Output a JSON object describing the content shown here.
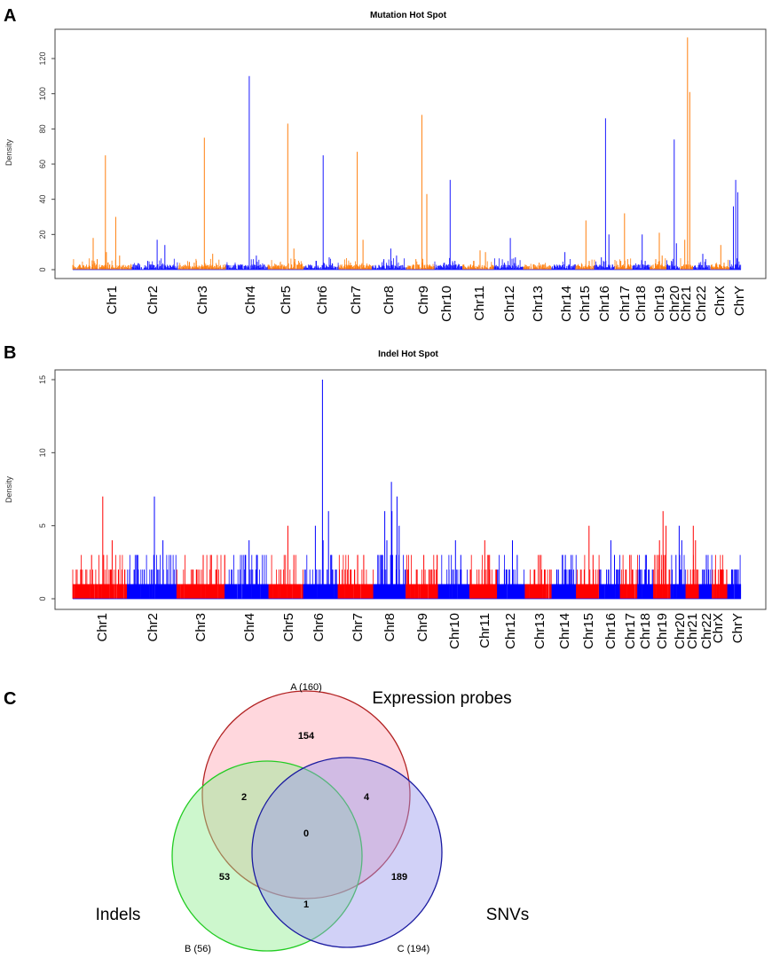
{
  "panels": {
    "a": {
      "letter": "A"
    },
    "b": {
      "letter": "B"
    },
    "c": {
      "letter": "C"
    }
  },
  "colors": {
    "mutation_odd": "#ff7f0e",
    "mutation_even": "#1a1aff",
    "indel_odd": "#ff0000",
    "indel_even": "#0000ff",
    "venn_a_fill": "#ffb6c1",
    "venn_a_stroke": "#b22222",
    "venn_b_fill": "#90ee90",
    "venn_b_stroke": "#22cc22",
    "venn_c_fill": "#9999ee",
    "venn_c_stroke": "#1a1aa0"
  },
  "chart_data": [
    {
      "type": "bar",
      "title": "Mutation Hot Spot",
      "ylabel": "Density",
      "ylim": [
        0,
        130
      ],
      "yticks": [
        0,
        20,
        40,
        60,
        80,
        100,
        120
      ],
      "grid": false,
      "categories": [
        "Chr1",
        "Chr2",
        "Chr3",
        "Chr4",
        "Chr5",
        "Chr6",
        "Chr7",
        "Chr8",
        "Chr9",
        "Chr10",
        "Chr11",
        "Chr12",
        "Chr13",
        "Chr14",
        "Chr15",
        "Chr16",
        "Chr17",
        "Chr18",
        "Chr19",
        "Chr20",
        "Chr21",
        "Chr22",
        "ChrX",
        "ChrY"
      ],
      "peaks": [
        {
          "chr": "Chr1",
          "values": [
            65,
            30,
            18,
            10,
            8,
            6
          ]
        },
        {
          "chr": "Chr2",
          "values": [
            17,
            14,
            5,
            3
          ]
        },
        {
          "chr": "Chr3",
          "values": [
            75,
            9,
            4
          ]
        },
        {
          "chr": "Chr4",
          "values": [
            110,
            8,
            3
          ]
        },
        {
          "chr": "Chr5",
          "values": [
            83,
            12,
            4
          ]
        },
        {
          "chr": "Chr6",
          "values": [
            65,
            7,
            5,
            4
          ]
        },
        {
          "chr": "Chr7",
          "values": [
            67,
            17,
            4
          ]
        },
        {
          "chr": "Chr8",
          "values": [
            12,
            8,
            6,
            5
          ]
        },
        {
          "chr": "Chr9",
          "values": [
            88,
            43,
            6,
            4
          ]
        },
        {
          "chr": "Chr10",
          "values": [
            51,
            5,
            4
          ]
        },
        {
          "chr": "Chr11",
          "values": [
            11,
            10,
            5
          ]
        },
        {
          "chr": "Chr12",
          "values": [
            18,
            7,
            4
          ]
        },
        {
          "chr": "Chr13",
          "values": [
            4,
            3,
            3
          ]
        },
        {
          "chr": "Chr14",
          "values": [
            10,
            3,
            2
          ]
        },
        {
          "chr": "Chr15",
          "values": [
            28,
            5,
            3
          ]
        },
        {
          "chr": "Chr16",
          "values": [
            86,
            20,
            7,
            5
          ]
        },
        {
          "chr": "Chr17",
          "values": [
            32,
            6,
            5
          ]
        },
        {
          "chr": "Chr18",
          "values": [
            20,
            5,
            3
          ]
        },
        {
          "chr": "Chr19",
          "values": [
            21,
            8,
            6,
            5
          ]
        },
        {
          "chr": "Chr20",
          "values": [
            74,
            15,
            5
          ]
        },
        {
          "chr": "Chr21",
          "values": [
            132,
            101,
            17,
            5
          ]
        },
        {
          "chr": "Chr22",
          "values": [
            9,
            6,
            4
          ]
        },
        {
          "chr": "ChrX",
          "values": [
            14,
            4,
            3
          ]
        },
        {
          "chr": "ChrY",
          "values": [
            51,
            44,
            36
          ]
        }
      ]
    },
    {
      "type": "bar",
      "title": "Indel Hot Spot",
      "ylabel": "Density",
      "ylim": [
        0,
        15
      ],
      "yticks": [
        0,
        5,
        10,
        15
      ],
      "grid": false,
      "categories": [
        "Chr1",
        "Chr2",
        "Chr3",
        "Chr4",
        "Chr5",
        "Chr6",
        "Chr7",
        "Chr8",
        "Chr9",
        "Chr10",
        "Chr11",
        "Chr12",
        "Chr13",
        "Chr14",
        "Chr15",
        "Chr16",
        "Chr17",
        "Chr18",
        "Chr19",
        "Chr20",
        "Chr21",
        "Chr22",
        "ChrX",
        "ChrY"
      ],
      "peaks": [
        {
          "chr": "Chr1",
          "values": [
            7,
            4,
            3,
            3,
            2
          ]
        },
        {
          "chr": "Chr2",
          "values": [
            7,
            4,
            2
          ]
        },
        {
          "chr": "Chr3",
          "values": [
            3,
            3,
            2
          ]
        },
        {
          "chr": "Chr4",
          "values": [
            4,
            3,
            2
          ]
        },
        {
          "chr": "Chr5",
          "values": [
            5,
            3,
            2
          ]
        },
        {
          "chr": "Chr6",
          "values": [
            15,
            6,
            5,
            4,
            3
          ]
        },
        {
          "chr": "Chr7",
          "values": [
            3,
            3,
            2
          ]
        },
        {
          "chr": "Chr8",
          "values": [
            8,
            7,
            6,
            6,
            5,
            4
          ]
        },
        {
          "chr": "Chr9",
          "values": [
            3,
            2,
            2
          ]
        },
        {
          "chr": "Chr10",
          "values": [
            4,
            3,
            2
          ]
        },
        {
          "chr": "Chr11",
          "values": [
            4,
            3,
            2
          ]
        },
        {
          "chr": "Chr12",
          "values": [
            4,
            3,
            2
          ]
        },
        {
          "chr": "Chr13",
          "values": [
            3,
            2,
            2
          ]
        },
        {
          "chr": "Chr14",
          "values": [
            3,
            2,
            1
          ]
        },
        {
          "chr": "Chr15",
          "values": [
            5,
            3,
            2
          ]
        },
        {
          "chr": "Chr16",
          "values": [
            4,
            3,
            2
          ]
        },
        {
          "chr": "Chr17",
          "values": [
            3,
            2,
            2
          ]
        },
        {
          "chr": "Chr18",
          "values": [
            3,
            2,
            1
          ]
        },
        {
          "chr": "Chr19",
          "values": [
            6,
            5,
            4,
            3
          ]
        },
        {
          "chr": "Chr20",
          "values": [
            5,
            4,
            3
          ]
        },
        {
          "chr": "Chr21",
          "values": [
            5,
            4,
            2
          ]
        },
        {
          "chr": "Chr22",
          "values": [
            3,
            2,
            2
          ]
        },
        {
          "chr": "ChrX",
          "values": [
            2,
            2,
            1
          ]
        },
        {
          "chr": "ChrY",
          "values": [
            2,
            1,
            1
          ]
        }
      ]
    }
  ],
  "venn": {
    "sets": {
      "a": {
        "label": "A (160)",
        "name": "Expression probes"
      },
      "b": {
        "label": "B (56)",
        "name": "Indels"
      },
      "c": {
        "label": "C (194)",
        "name": "SNVs"
      }
    },
    "regions": {
      "a_only": "154",
      "b_only": "53",
      "c_only": "189",
      "ab": "2",
      "ac": "4",
      "bc": "1",
      "abc": "0"
    }
  }
}
